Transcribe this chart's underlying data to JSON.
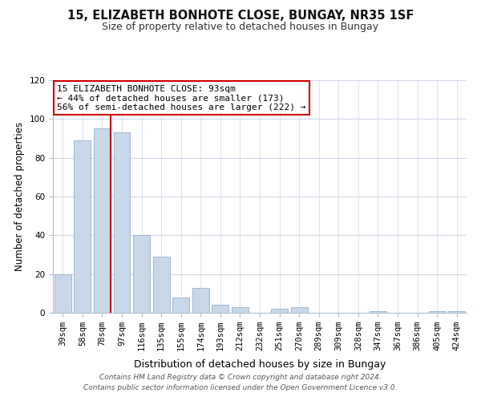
{
  "title": "15, ELIZABETH BONHOTE CLOSE, BUNGAY, NR35 1SF",
  "subtitle": "Size of property relative to detached houses in Bungay",
  "xlabel": "Distribution of detached houses by size in Bungay",
  "ylabel": "Number of detached properties",
  "categories": [
    "39sqm",
    "58sqm",
    "78sqm",
    "97sqm",
    "116sqm",
    "135sqm",
    "155sqm",
    "174sqm",
    "193sqm",
    "212sqm",
    "232sqm",
    "251sqm",
    "270sqm",
    "289sqm",
    "309sqm",
    "328sqm",
    "347sqm",
    "367sqm",
    "386sqm",
    "405sqm",
    "424sqm"
  ],
  "values": [
    20,
    89,
    95,
    93,
    40,
    29,
    8,
    13,
    4,
    3,
    0,
    2,
    3,
    0,
    0,
    0,
    1,
    0,
    0,
    1,
    1
  ],
  "bar_color": "#c8d8e8",
  "bar_edge_color": "#a0b8d0",
  "vline_x_index": 2,
  "vline_color": "#cc0000",
  "ylim": [
    0,
    120
  ],
  "annotation_text": "15 ELIZABETH BONHOTE CLOSE: 93sqm\n← 44% of detached houses are smaller (173)\n56% of semi-detached houses are larger (222) →",
  "annotation_box_edgecolor": "#cc0000",
  "footer": "Contains HM Land Registry data © Crown copyright and database right 2024.\nContains public sector information licensed under the Open Government Licence v3.0.",
  "background_color": "#ffffff",
  "grid_color": "#d0d8e8",
  "title_fontsize": 10.5,
  "subtitle_fontsize": 9,
  "ylabel_fontsize": 8.5,
  "xlabel_fontsize": 9,
  "tick_fontsize": 7.5,
  "annot_fontsize": 8,
  "footer_fontsize": 6.5
}
